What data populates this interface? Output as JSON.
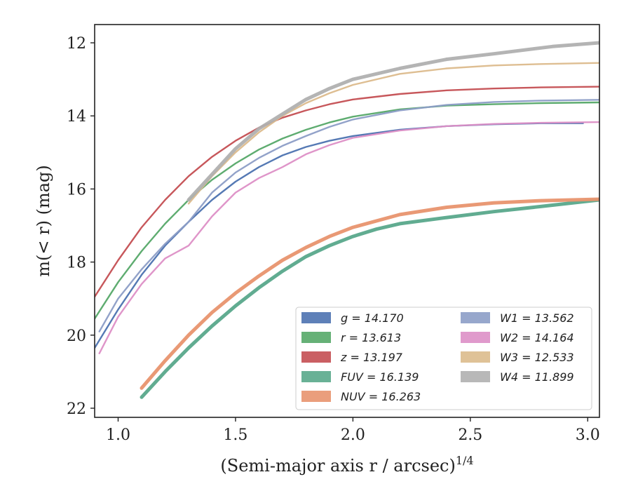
{
  "chart_data": {
    "type": "line",
    "xlabel": "(Semi-major axis r / arcsec)",
    "xlabel_exponent": "1/4",
    "ylabel": "m(< r) (mag)",
    "xlim": [
      0.9,
      3.05
    ],
    "ylim": [
      22.25,
      11.5
    ],
    "y_inverted": true,
    "x_ticks": [
      1.0,
      1.5,
      2.0,
      2.5,
      3.0
    ],
    "x_tick_labels": [
      "1.0",
      "1.5",
      "2.0",
      "2.5",
      "3.0"
    ],
    "y_ticks": [
      12,
      14,
      16,
      18,
      20,
      22
    ],
    "y_tick_labels": [
      "12",
      "14",
      "16",
      "18",
      "20",
      "22"
    ],
    "legend_position": "lower-right",
    "legend_columns": 2,
    "series": [
      {
        "name": "g",
        "legend": "g = 14.170",
        "color": "#4c72b0",
        "x": [
          0.9,
          1.0,
          1.1,
          1.2,
          1.3,
          1.4,
          1.5,
          1.6,
          1.7,
          1.8,
          1.9,
          2.0,
          2.2,
          2.4,
          2.6,
          2.8,
          2.98
        ],
        "y": [
          20.35,
          19.3,
          18.35,
          17.55,
          16.9,
          16.3,
          15.8,
          15.4,
          15.08,
          14.85,
          14.68,
          14.55,
          14.38,
          14.28,
          14.23,
          14.2,
          14.2
        ]
      },
      {
        "name": "r",
        "legend": "r = 13.613",
        "color": "#55a868",
        "x": [
          0.9,
          1.0,
          1.1,
          1.2,
          1.3,
          1.4,
          1.5,
          1.6,
          1.7,
          1.8,
          1.9,
          2.0,
          2.2,
          2.4,
          2.6,
          2.8,
          3.05
        ],
        "y": [
          19.55,
          18.55,
          17.7,
          16.95,
          16.3,
          15.75,
          15.3,
          14.92,
          14.62,
          14.38,
          14.18,
          14.02,
          13.82,
          13.72,
          13.68,
          13.65,
          13.63
        ]
      },
      {
        "name": "z",
        "legend": "z = 13.197",
        "color": "#c44e52",
        "x": [
          0.9,
          1.0,
          1.1,
          1.2,
          1.3,
          1.4,
          1.5,
          1.6,
          1.7,
          1.8,
          1.9,
          2.0,
          2.2,
          2.4,
          2.6,
          2.8,
          3.05
        ],
        "y": [
          18.95,
          17.95,
          17.05,
          16.3,
          15.65,
          15.12,
          14.68,
          14.32,
          14.05,
          13.85,
          13.68,
          13.55,
          13.4,
          13.3,
          13.25,
          13.22,
          13.2
        ]
      },
      {
        "name": "FUV",
        "legend": "FUV = 16.139",
        "color": "#59a88b",
        "x": [
          1.1,
          1.2,
          1.3,
          1.4,
          1.5,
          1.6,
          1.7,
          1.8,
          1.9,
          2.0,
          2.1,
          2.2,
          2.4,
          2.6,
          2.8,
          3.05
        ],
        "y": [
          21.7,
          21.0,
          20.35,
          19.75,
          19.2,
          18.7,
          18.25,
          17.85,
          17.55,
          17.3,
          17.1,
          16.95,
          16.78,
          16.62,
          16.48,
          16.3
        ]
      },
      {
        "name": "NUV",
        "legend": "NUV = 16.263",
        "color": "#e8936e",
        "x": [
          1.1,
          1.2,
          1.3,
          1.4,
          1.5,
          1.6,
          1.7,
          1.8,
          1.9,
          2.0,
          2.2,
          2.4,
          2.6,
          2.8,
          3.05
        ],
        "y": [
          21.45,
          20.7,
          20.0,
          19.38,
          18.85,
          18.38,
          17.95,
          17.6,
          17.3,
          17.05,
          16.7,
          16.5,
          16.38,
          16.32,
          16.28
        ]
      },
      {
        "name": "W1",
        "legend": "W1 = 13.562",
        "color": "#8c9dc6",
        "x": [
          0.92,
          1.0,
          1.1,
          1.2,
          1.3,
          1.4,
          1.5,
          1.6,
          1.7,
          1.8,
          1.9,
          2.0,
          2.2,
          2.4,
          2.6,
          2.8,
          3.05
        ],
        "y": [
          19.9,
          19.0,
          18.2,
          17.5,
          16.9,
          16.1,
          15.55,
          15.15,
          14.82,
          14.55,
          14.3,
          14.1,
          13.85,
          13.7,
          13.62,
          13.58,
          13.56
        ]
      },
      {
        "name": "W2",
        "legend": "W2 = 14.164",
        "color": "#dd8fc6",
        "x": [
          0.92,
          1.0,
          1.1,
          1.2,
          1.3,
          1.4,
          1.5,
          1.6,
          1.7,
          1.8,
          1.9,
          2.0,
          2.2,
          2.4,
          2.6,
          2.8,
          3.05
        ],
        "y": [
          20.5,
          19.5,
          18.6,
          17.9,
          17.55,
          16.75,
          16.1,
          15.7,
          15.4,
          15.05,
          14.8,
          14.6,
          14.4,
          14.28,
          14.22,
          14.19,
          14.17
        ]
      },
      {
        "name": "W3",
        "legend": "W3 = 12.533",
        "color": "#dcbb8c",
        "x": [
          1.3,
          1.4,
          1.5,
          1.6,
          1.7,
          1.8,
          1.9,
          2.0,
          2.2,
          2.4,
          2.6,
          2.8,
          3.05
        ],
        "y": [
          16.4,
          15.65,
          15.0,
          14.45,
          14.0,
          13.65,
          13.38,
          13.15,
          12.85,
          12.7,
          12.62,
          12.58,
          12.55
        ]
      },
      {
        "name": "W4",
        "legend": "W4 = 11.899",
        "color": "#b0b0b0",
        "x": [
          1.3,
          1.4,
          1.5,
          1.6,
          1.7,
          1.8,
          1.9,
          2.0,
          2.2,
          2.4,
          2.6,
          2.85,
          3.05
        ],
        "y": [
          16.3,
          15.6,
          14.9,
          14.35,
          13.95,
          13.55,
          13.25,
          13.0,
          12.7,
          12.45,
          12.3,
          12.1,
          12.0
        ]
      }
    ]
  }
}
